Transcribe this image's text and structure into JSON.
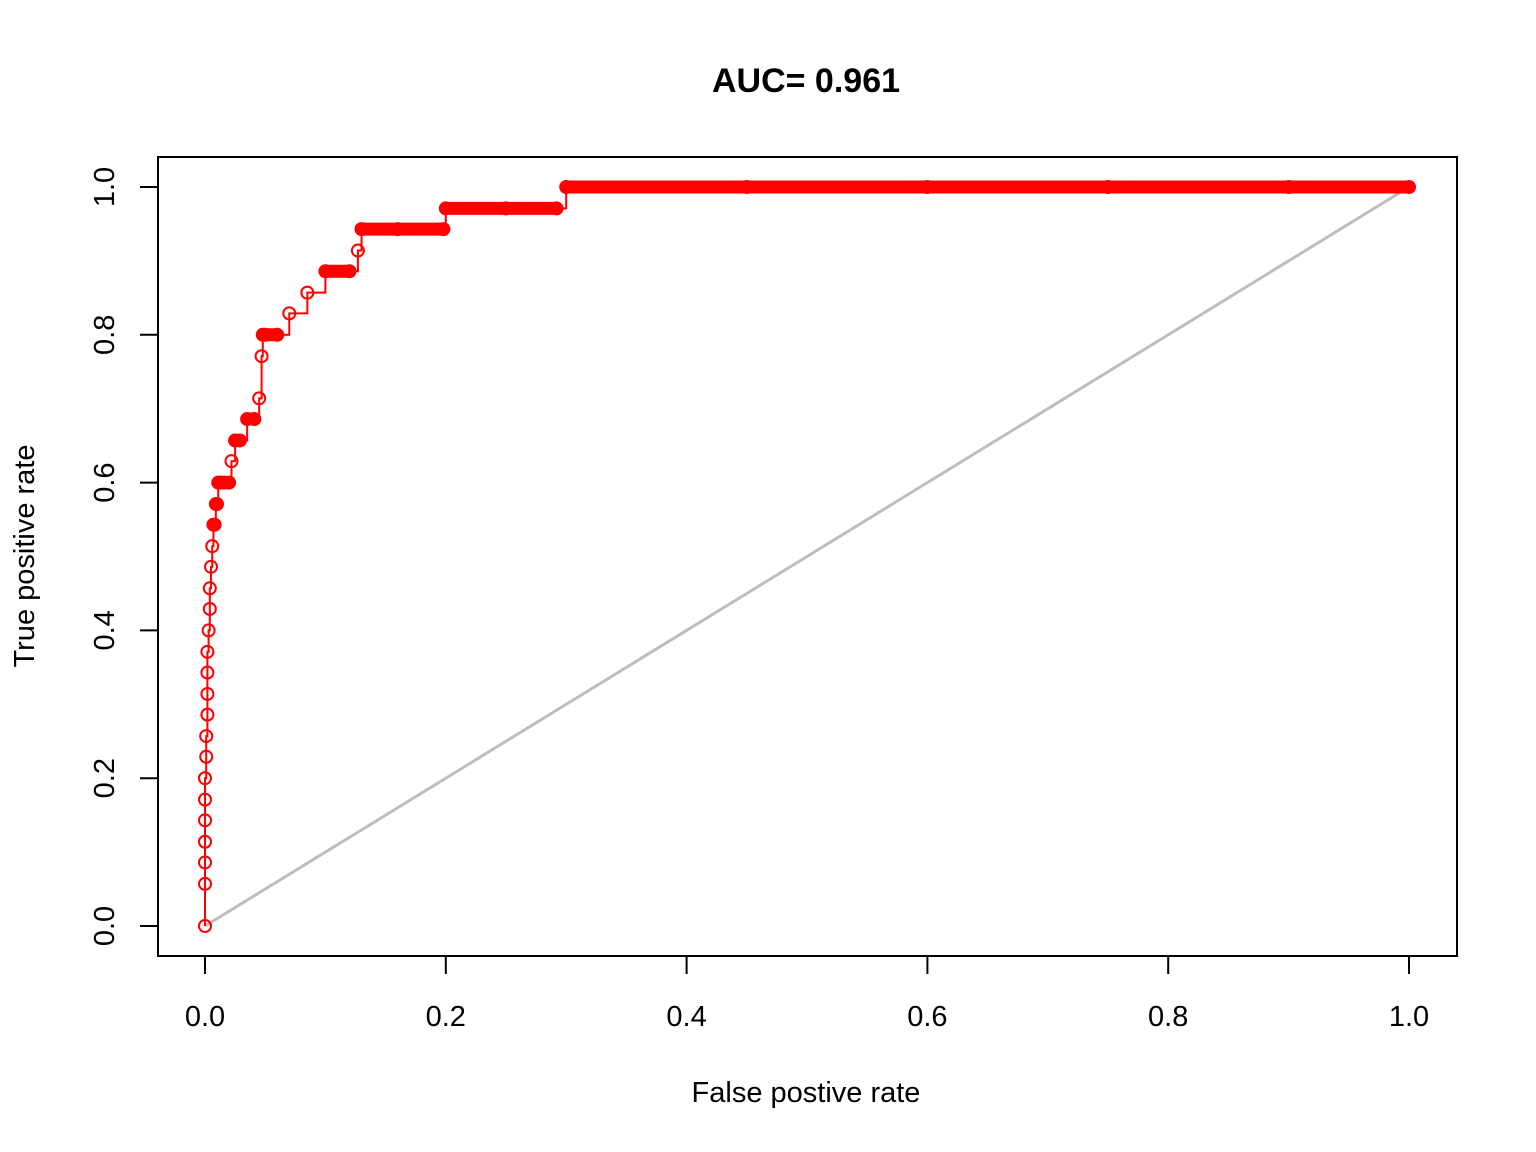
{
  "chart_data": {
    "type": "line",
    "title": "AUC= 0.961",
    "xlabel": "False postive rate",
    "ylabel": "True positive rate",
    "xlim": [
      0,
      1
    ],
    "ylim": [
      0,
      1
    ],
    "x_ticks": [
      "0.0",
      "0.2",
      "0.4",
      "0.6",
      "0.8",
      "1.0"
    ],
    "y_ticks": [
      "0.0",
      "0.2",
      "0.4",
      "0.6",
      "0.8",
      "1.0"
    ],
    "grid": false,
    "legend": "none",
    "series": [
      {
        "role": "roc-curve",
        "color": "#ff0000",
        "marker": "open-circle",
        "x": [
          0.0,
          0.0,
          0.0,
          0.0,
          0.0,
          0.0,
          0.0,
          0.001,
          0.001,
          0.002,
          0.002,
          0.002,
          0.002,
          0.003,
          0.004,
          0.004,
          0.005,
          0.006,
          0.007,
          0.008,
          0.009,
          0.01,
          0.011,
          0.013,
          0.016,
          0.02,
          0.022,
          0.025,
          0.029,
          0.035,
          0.041,
          0.045,
          0.047,
          0.048,
          0.05,
          0.06,
          0.07,
          0.085,
          0.1,
          0.12,
          0.127,
          0.13,
          0.16,
          0.198,
          0.2,
          0.25,
          0.292,
          0.3,
          0.45,
          0.6,
          0.75,
          0.9,
          1.0
        ],
        "y": [
          0.0,
          0.057,
          0.086,
          0.114,
          0.143,
          0.171,
          0.2,
          0.229,
          0.257,
          0.286,
          0.314,
          0.343,
          0.371,
          0.4,
          0.429,
          0.457,
          0.486,
          0.514,
          0.543,
          0.543,
          0.571,
          0.571,
          0.6,
          0.6,
          0.6,
          0.6,
          0.629,
          0.657,
          0.657,
          0.686,
          0.686,
          0.714,
          0.771,
          0.8,
          0.8,
          0.8,
          0.829,
          0.857,
          0.886,
          0.886,
          0.914,
          0.943,
          0.943,
          0.943,
          0.971,
          0.971,
          0.971,
          1.0,
          1.0,
          1.0,
          1.0,
          1.0,
          1.0
        ]
      },
      {
        "role": "diagonal-reference",
        "color": "#bebebe",
        "x": [
          0,
          1
        ],
        "y": [
          0,
          1
        ]
      }
    ]
  }
}
